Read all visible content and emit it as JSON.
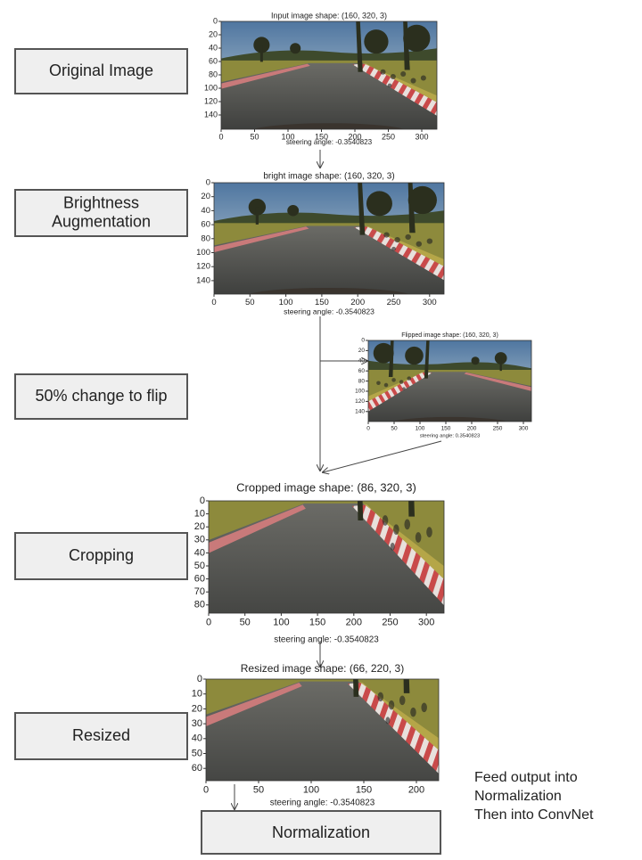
{
  "steps": [
    {
      "lines": [
        "Original Image"
      ]
    },
    {
      "lines": [
        "Brightness",
        "Augmentation"
      ]
    },
    {
      "lines": [
        "50% change to flip"
      ]
    },
    {
      "lines": [
        "Cropping"
      ]
    },
    {
      "lines": [
        "Resized"
      ]
    }
  ],
  "images": [
    {
      "title": "Input image shape: (160, 320, 3)",
      "yticks": [
        0,
        20,
        40,
        60,
        80,
        100,
        120,
        140
      ],
      "xticks": [
        0,
        50,
        100,
        150,
        200,
        250,
        300
      ],
      "caption": "steering angle: -0.3540823"
    },
    {
      "title": "bright image shape: (160, 320, 3)",
      "yticks": [
        0,
        20,
        40,
        60,
        80,
        100,
        120,
        140
      ],
      "xticks": [
        0,
        50,
        100,
        150,
        200,
        250,
        300
      ],
      "caption": "steering angle: -0.3540823"
    },
    {
      "title": "Flipped image shape: (160, 320, 3)",
      "yticks": [
        0,
        20,
        40,
        60,
        80,
        100,
        120,
        140
      ],
      "xticks": [
        0,
        50,
        100,
        150,
        200,
        250,
        300
      ],
      "caption": "steering angle: 0.3540823"
    },
    {
      "title": "Cropped image shape: (86, 320, 3)",
      "yticks": [
        0,
        10,
        20,
        30,
        40,
        50,
        60,
        70,
        80
      ],
      "xticks": [
        0,
        50,
        100,
        150,
        200,
        250,
        300
      ],
      "caption": "steering angle: -0.3540823"
    },
    {
      "title": "Resized image shape: (66, 220, 3)",
      "yticks": [
        0,
        10,
        20,
        30,
        40,
        50,
        60
      ],
      "xticks": [
        0,
        50,
        100,
        150,
        200
      ],
      "caption": "steering angle: -0.3540823"
    }
  ],
  "final": "Normalization",
  "note": [
    "Feed output into",
    "Normalization",
    "Then into ConvNet"
  ]
}
